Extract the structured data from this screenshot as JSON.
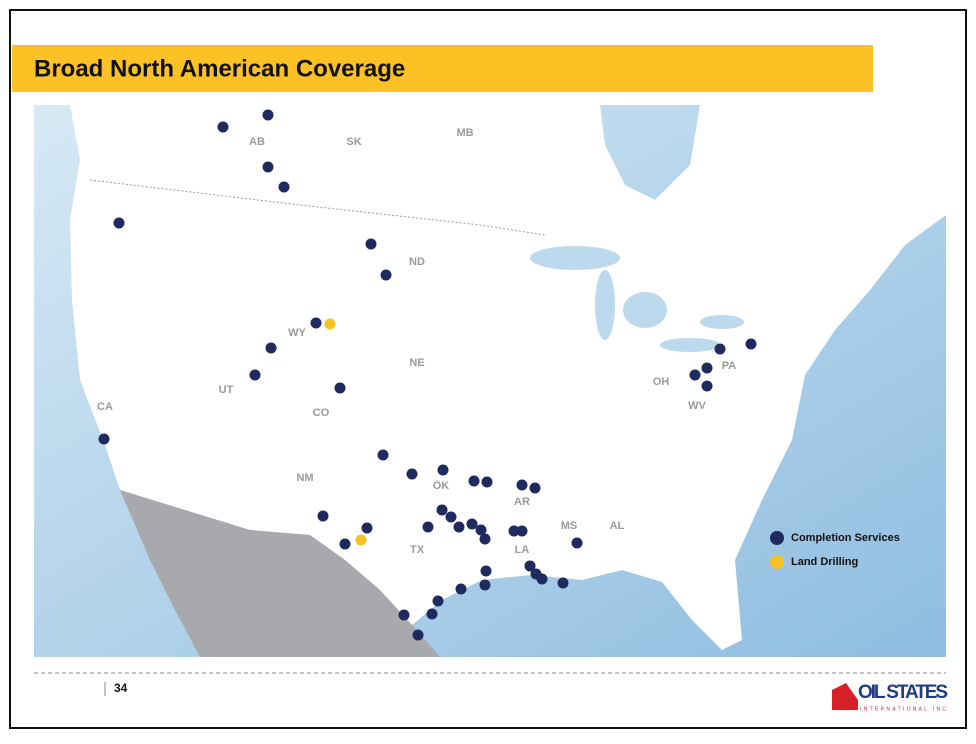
{
  "header": {
    "title": "Broad North American Coverage"
  },
  "map": {
    "state_labels": [
      "AB",
      "SK",
      "MB",
      "ND",
      "WY",
      "NE",
      "UT",
      "CA",
      "CO",
      "NM",
      "OK",
      "AR",
      "TX",
      "LA",
      "MS",
      "AL",
      "OH",
      "PA",
      "WV"
    ]
  },
  "legend": {
    "items": [
      {
        "label": "Completion Services",
        "color": "#1f2a5e"
      },
      {
        "label": "Land Drilling",
        "color": "#f7c126"
      }
    ]
  },
  "footer": {
    "page": "34"
  },
  "logo": {
    "text": "OIL STATES",
    "subtext": "INTERNATIONAL INC"
  }
}
